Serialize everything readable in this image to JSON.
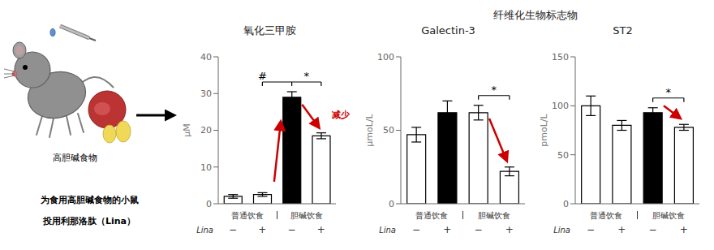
{
  "title": "纤维化生物标志物",
  "annotations": [
    "为食用高胆碱食物的小鼠",
    "投用利那洛肽（Lina）",
    "高胆碱食物"
  ],
  "chart_data": [
    {
      "type": "bar",
      "title": "氧化三甲胺",
      "ylabel": "μM",
      "xlabel": "Lina",
      "categories": [
        "−",
        "+",
        "−",
        "+"
      ],
      "groups": [
        "普通饮食",
        "胆碱饮食"
      ],
      "values": [
        2.0,
        2.5,
        29.0,
        18.5
      ],
      "errors": [
        0.5,
        0.5,
        1.5,
        0.8
      ],
      "colors": [
        "white",
        "white",
        "black",
        "white"
      ],
      "ylim": [
        0,
        40
      ],
      "yticks": [
        0,
        10,
        20,
        30,
        40
      ],
      "annotations": [
        {
          "text": "#"
        },
        {
          "text": "*"
        },
        {
          "text": "减少",
          "color": "#cc0000"
        }
      ]
    },
    {
      "type": "bar",
      "title": "Galectin-3",
      "ylabel": "μmoL/L",
      "xlabel": "Lina",
      "categories": [
        "−",
        "+",
        "−",
        "+"
      ],
      "groups": [
        "普通饮食",
        "胆碱饮食"
      ],
      "values": [
        47,
        62,
        62,
        22
      ],
      "errors": [
        5,
        8,
        5,
        3
      ],
      "colors": [
        "white",
        "black",
        "white",
        "white"
      ],
      "ylim": [
        0,
        100
      ],
      "yticks": [
        0,
        50,
        100
      ],
      "annotations": [
        {
          "text": "*"
        }
      ]
    },
    {
      "type": "bar",
      "title": "ST2",
      "ylabel": "pmoL/L",
      "xlabel": "Lina",
      "categories": [
        "−",
        "+",
        "−",
        "+"
      ],
      "groups": [
        "普通饮食",
        "胆碱饮食"
      ],
      "values": [
        100,
        80,
        93,
        78
      ],
      "errors": [
        10,
        5,
        5,
        3
      ],
      "colors": [
        "white",
        "white",
        "black",
        "white"
      ],
      "ylim": [
        0,
        150
      ],
      "yticks": [
        0,
        50,
        100,
        150
      ],
      "annotations": [
        {
          "text": "*"
        }
      ]
    }
  ]
}
